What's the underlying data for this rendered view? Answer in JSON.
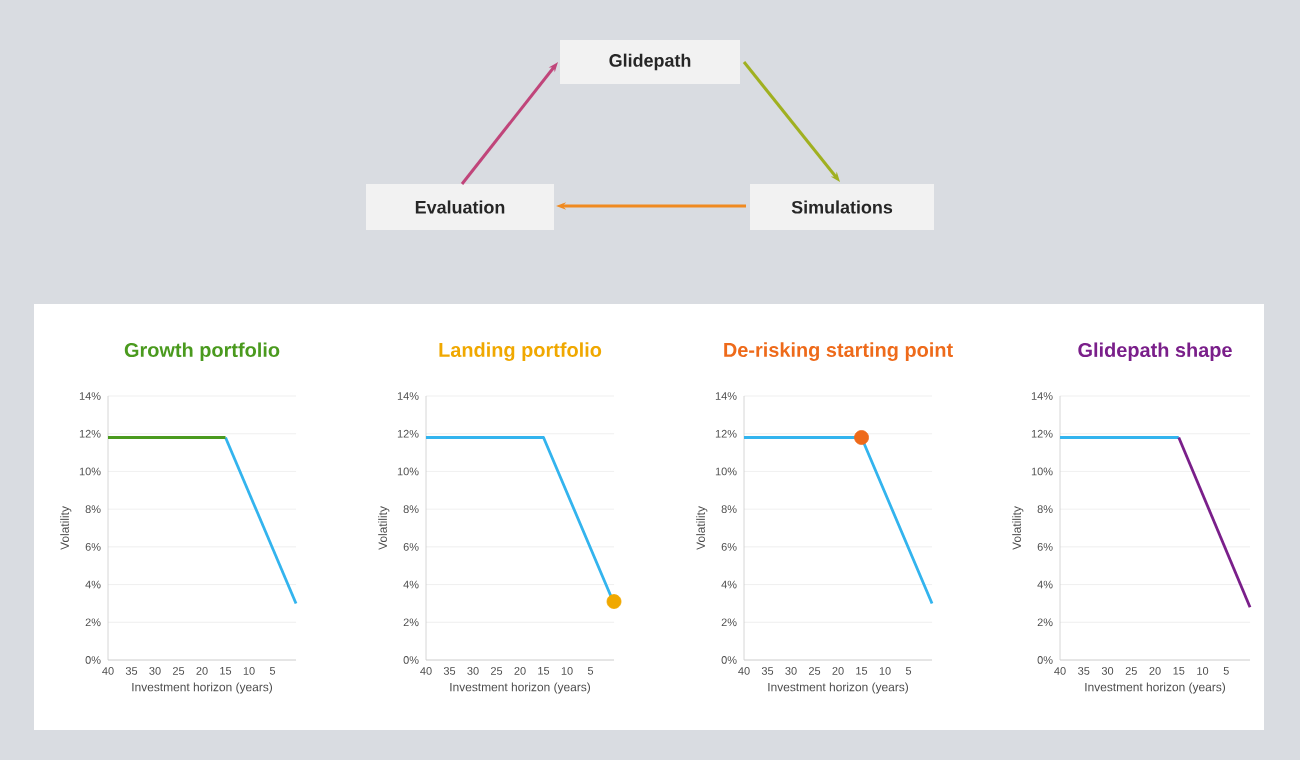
{
  "chart_data": [
    {
      "type": "other",
      "annotations": [
        "Glidepath",
        "Simulations",
        "Evaluation"
      ]
    },
    {
      "type": "line",
      "title": "Growth portfolio",
      "xlabel": "Investment horizon (years)",
      "ylabel": "Volatility",
      "xlim": [
        40,
        0
      ],
      "xticks": [
        40,
        35,
        30,
        25,
        20,
        15,
        10,
        5
      ],
      "ylim": [
        0,
        14
      ],
      "yticks": [
        {
          "value": 0,
          "label": "0%"
        },
        {
          "value": 2,
          "label": "2%"
        },
        {
          "value": 4,
          "label": "4%"
        },
        {
          "value": 6,
          "label": "6%"
        },
        {
          "value": 8,
          "label": "8%"
        },
        {
          "value": 10,
          "label": "10%"
        },
        {
          "value": 12,
          "label": "12%"
        },
        {
          "value": 14,
          "label": "14%"
        }
      ],
      "grid": "y",
      "series": [
        {
          "color": "#33b4ee",
          "x": [
            15,
            0
          ],
          "values": [
            11.8,
            3
          ]
        },
        {
          "color": "#4a9a1e",
          "x": [
            40,
            15
          ],
          "values": [
            11.8,
            11.8
          ]
        }
      ]
    },
    {
      "type": "line",
      "title": "Landing portfolio",
      "xlabel": "Investment horizon (years)",
      "ylabel": "Volatility",
      "xlim": [
        40,
        0
      ],
      "xticks": [
        40,
        35,
        30,
        25,
        20,
        15,
        10,
        5
      ],
      "ylim": [
        0,
        14
      ],
      "yticks": [
        {
          "value": 0,
          "label": "0%"
        },
        {
          "value": 2,
          "label": "2%"
        },
        {
          "value": 4,
          "label": "4%"
        },
        {
          "value": 6,
          "label": "6%"
        },
        {
          "value": 8,
          "label": "8%"
        },
        {
          "value": 10,
          "label": "10%"
        },
        {
          "value": 12,
          "label": "12%"
        },
        {
          "value": 14,
          "label": "14%"
        }
      ],
      "grid": "y",
      "series": [
        {
          "color": "#33b4ee",
          "x": [
            40,
            15,
            0
          ],
          "values": [
            11.8,
            11.8,
            3
          ]
        },
        {
          "type": "scatter",
          "color": "#f0a800",
          "x": [
            0
          ],
          "values": [
            3.1
          ]
        }
      ]
    },
    {
      "type": "line",
      "title": "De-risking starting point",
      "xlabel": "Investment horizon (years)",
      "ylabel": "Volatility",
      "xlim": [
        40,
        0
      ],
      "xticks": [
        40,
        35,
        30,
        25,
        20,
        15,
        10,
        5
      ],
      "ylim": [
        0,
        14
      ],
      "yticks": [
        {
          "value": 0,
          "label": "0%"
        },
        {
          "value": 2,
          "label": "2%"
        },
        {
          "value": 4,
          "label": "4%"
        },
        {
          "value": 6,
          "label": "6%"
        },
        {
          "value": 8,
          "label": "8%"
        },
        {
          "value": 10,
          "label": "10%"
        },
        {
          "value": 12,
          "label": "12%"
        },
        {
          "value": 14,
          "label": "14%"
        }
      ],
      "grid": "y",
      "series": [
        {
          "color": "#33b4ee",
          "x": [
            40,
            15,
            0
          ],
          "values": [
            11.8,
            11.8,
            3
          ]
        },
        {
          "type": "scatter",
          "color": "#ee6a1a",
          "x": [
            15
          ],
          "values": [
            11.8
          ]
        }
      ]
    },
    {
      "type": "line",
      "title": "Glidepath shape",
      "xlabel": "Investment horizon (years)",
      "ylabel": "Volatility",
      "xlim": [
        40,
        0
      ],
      "xticks": [
        40,
        35,
        30,
        25,
        20,
        15,
        10,
        5
      ],
      "ylim": [
        0,
        14
      ],
      "yticks": [
        {
          "value": 0,
          "label": "0%"
        },
        {
          "value": 2,
          "label": "2%"
        },
        {
          "value": 4,
          "label": "4%"
        },
        {
          "value": 6,
          "label": "6%"
        },
        {
          "value": 8,
          "label": "8%"
        },
        {
          "value": 10,
          "label": "10%"
        },
        {
          "value": 12,
          "label": "12%"
        },
        {
          "value": 14,
          "label": "14%"
        }
      ],
      "grid": "y",
      "series": [
        {
          "color": "#33b4ee",
          "x": [
            40,
            15
          ],
          "values": [
            11.8,
            11.8
          ]
        },
        {
          "color": "#7a1f8a",
          "x": [
            15,
            0
          ],
          "values": [
            11.8,
            2.8
          ]
        }
      ]
    }
  ]
}
